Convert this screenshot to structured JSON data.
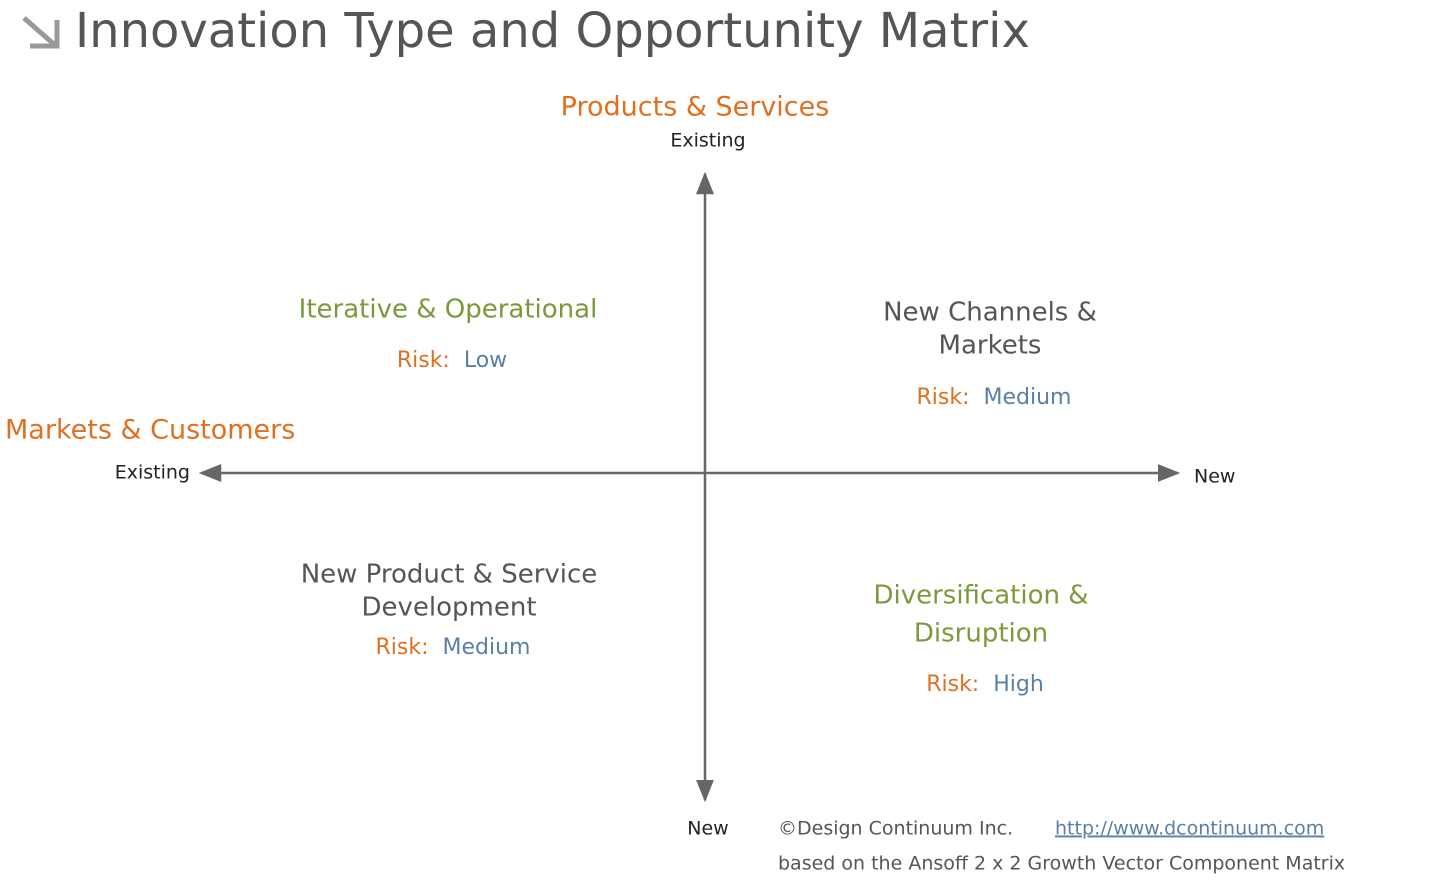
{
  "header": {
    "title": "Innovation Type and Opportunity Matrix"
  },
  "vertical_axis": {
    "label": "Products & Services",
    "top": "Existing",
    "bottom": "New"
  },
  "horizontal_axis": {
    "label": "Markets & Customers",
    "left": "Existing",
    "right": "New"
  },
  "quadrants": [
    {
      "title_lines": [
        "Iterative & Operational"
      ],
      "risk_label": "Risk:",
      "risk_value": "Low"
    },
    {
      "title_lines": [
        "New Channels &",
        "Markets"
      ],
      "risk_label": "Risk:",
      "risk_value": "Medium"
    },
    {
      "title_lines": [
        "New Product & Service",
        "Development"
      ],
      "risk_label": "Risk:",
      "risk_value": "Medium"
    },
    {
      "title_lines": [
        "Diversification &",
        "Disruption"
      ],
      "risk_label": "Risk:",
      "risk_value": "High"
    }
  ],
  "footer": {
    "copyright": "©Design Continuum Inc.",
    "link": "http://www.dcontinuum.com",
    "note": "based on the Ansoff 2 x 2 Growth Vector Component Matrix"
  }
}
